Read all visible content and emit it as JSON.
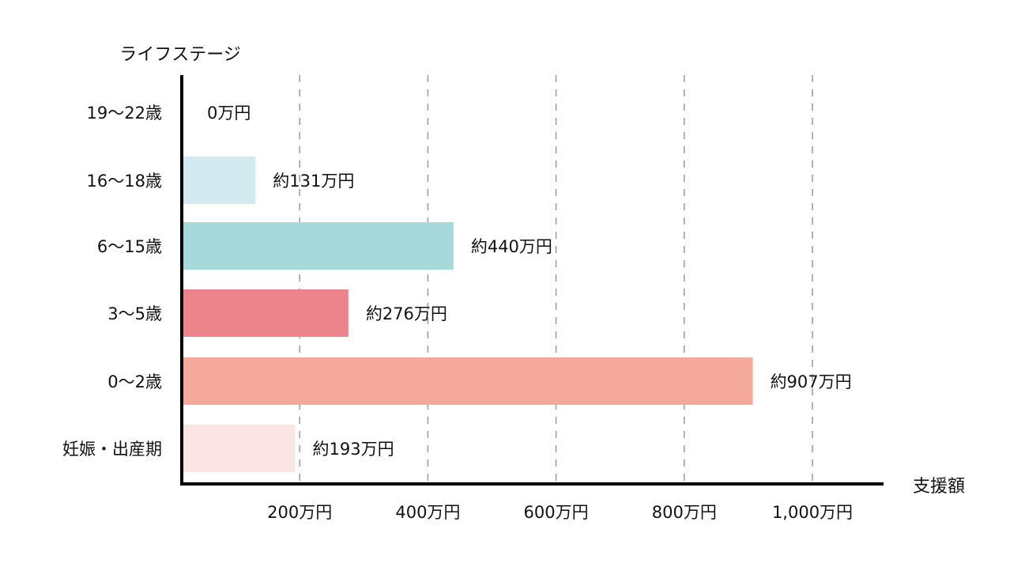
{
  "chart_data": {
    "type": "bar",
    "orientation": "horizontal",
    "ylabel": "ライフステージ",
    "xlabel": "支援額",
    "categories": [
      "19〜22歳",
      "16〜18歳",
      "6〜15歳",
      "3〜5歳",
      "0〜2歳",
      "妊娠・出産期"
    ],
    "values": [
      0,
      131,
      440,
      276,
      907,
      193
    ],
    "data_labels": [
      "0万円",
      "約131万円",
      "約440万円",
      "約276万円",
      "約907万円",
      "約193万円"
    ],
    "colors": [
      "#ffffff",
      "#d3ebf0",
      "#a8d9da",
      "#ed838b",
      "#f4a99b",
      "#fae4e5"
    ],
    "xticks": [
      200,
      400,
      600,
      800,
      1000
    ],
    "xtick_labels": [
      "200万円",
      "400万円",
      "600万円",
      "800万円",
      "1,000万円"
    ],
    "xlim": [
      0,
      1100
    ],
    "grid": "vertical dashed",
    "unit": "万円"
  }
}
